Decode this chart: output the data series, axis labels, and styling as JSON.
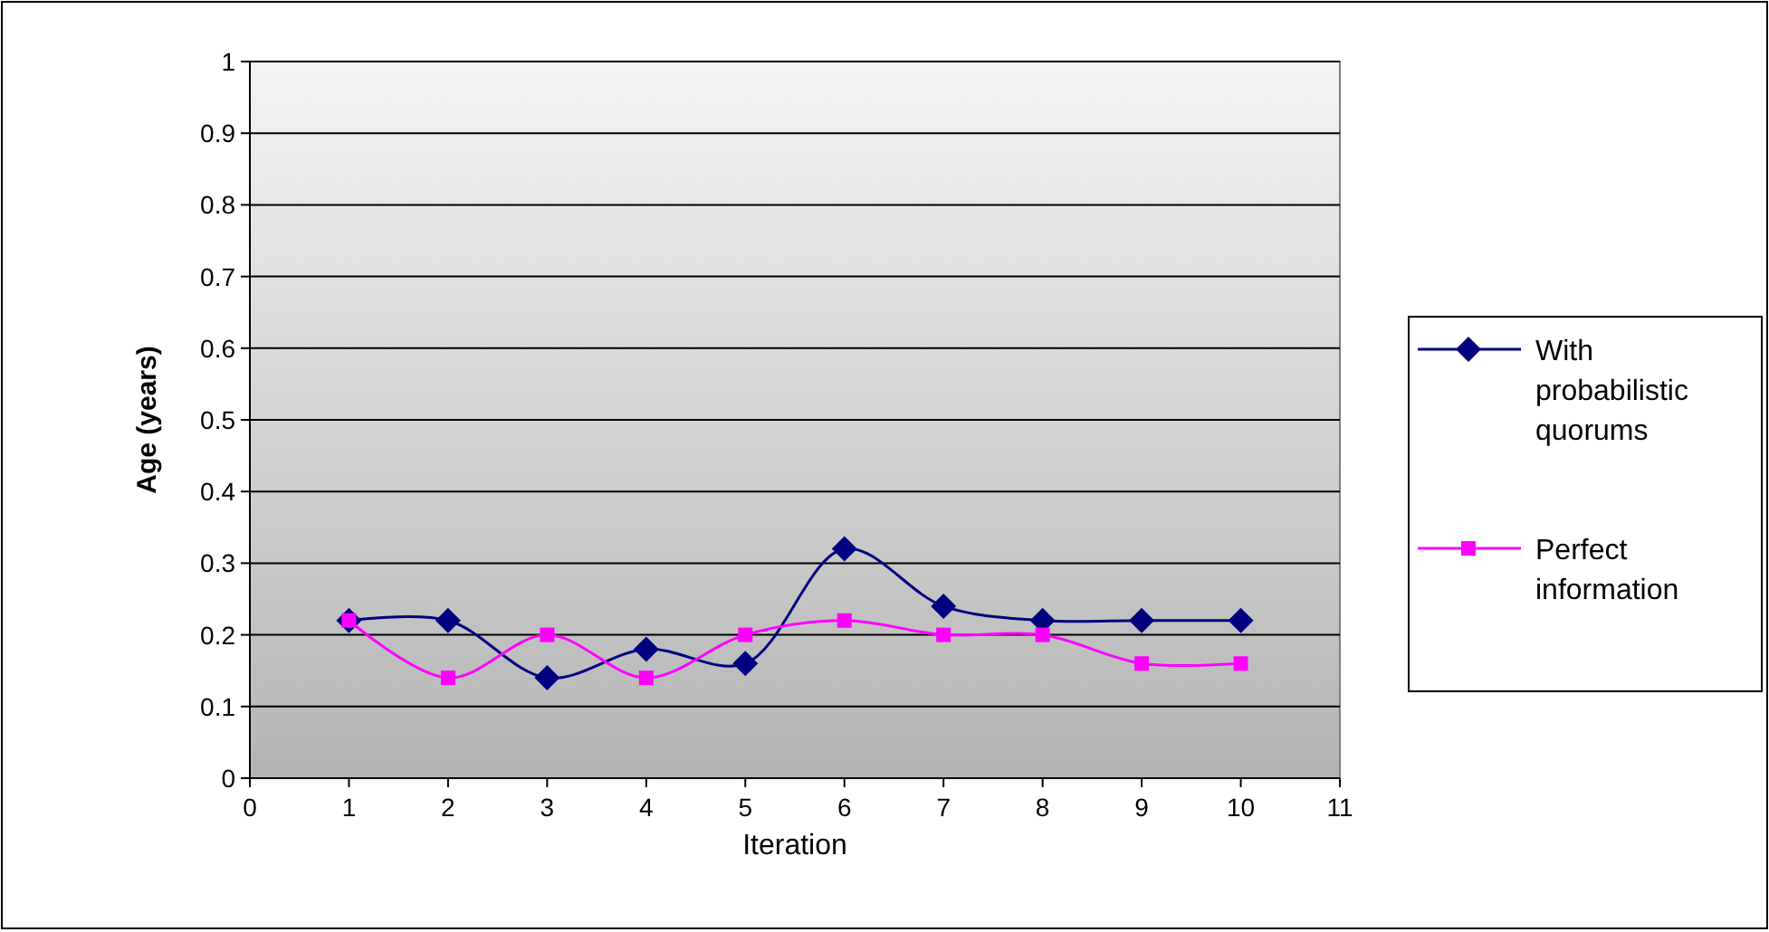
{
  "chart_data": {
    "type": "line",
    "xlabel": "Iteration",
    "ylabel": "Age (years)",
    "x": [
      1,
      2,
      3,
      4,
      5,
      6,
      7,
      8,
      9,
      10
    ],
    "xlim": [
      0,
      11
    ],
    "xticks": [
      0,
      1,
      2,
      3,
      4,
      5,
      6,
      7,
      8,
      9,
      10,
      11
    ],
    "ylim": [
      0,
      1
    ],
    "yticks": [
      0,
      0.1,
      0.2,
      0.3,
      0.4,
      0.5,
      0.6,
      0.7,
      0.8,
      0.9,
      1
    ],
    "grid": "y",
    "legend": "right",
    "series": [
      {
        "name": "With probabilistic quorums",
        "color": "#000080",
        "marker": "diamond",
        "values": [
          0.22,
          0.22,
          0.14,
          0.18,
          0.16,
          0.32,
          0.24,
          0.22,
          0.22,
          0.22
        ]
      },
      {
        "name": "Perfect information",
        "color": "#ff00ff",
        "marker": "square",
        "values": [
          0.22,
          0.14,
          0.2,
          0.14,
          0.2,
          0.22,
          0.2,
          0.2,
          0.16,
          0.16
        ]
      }
    ]
  }
}
